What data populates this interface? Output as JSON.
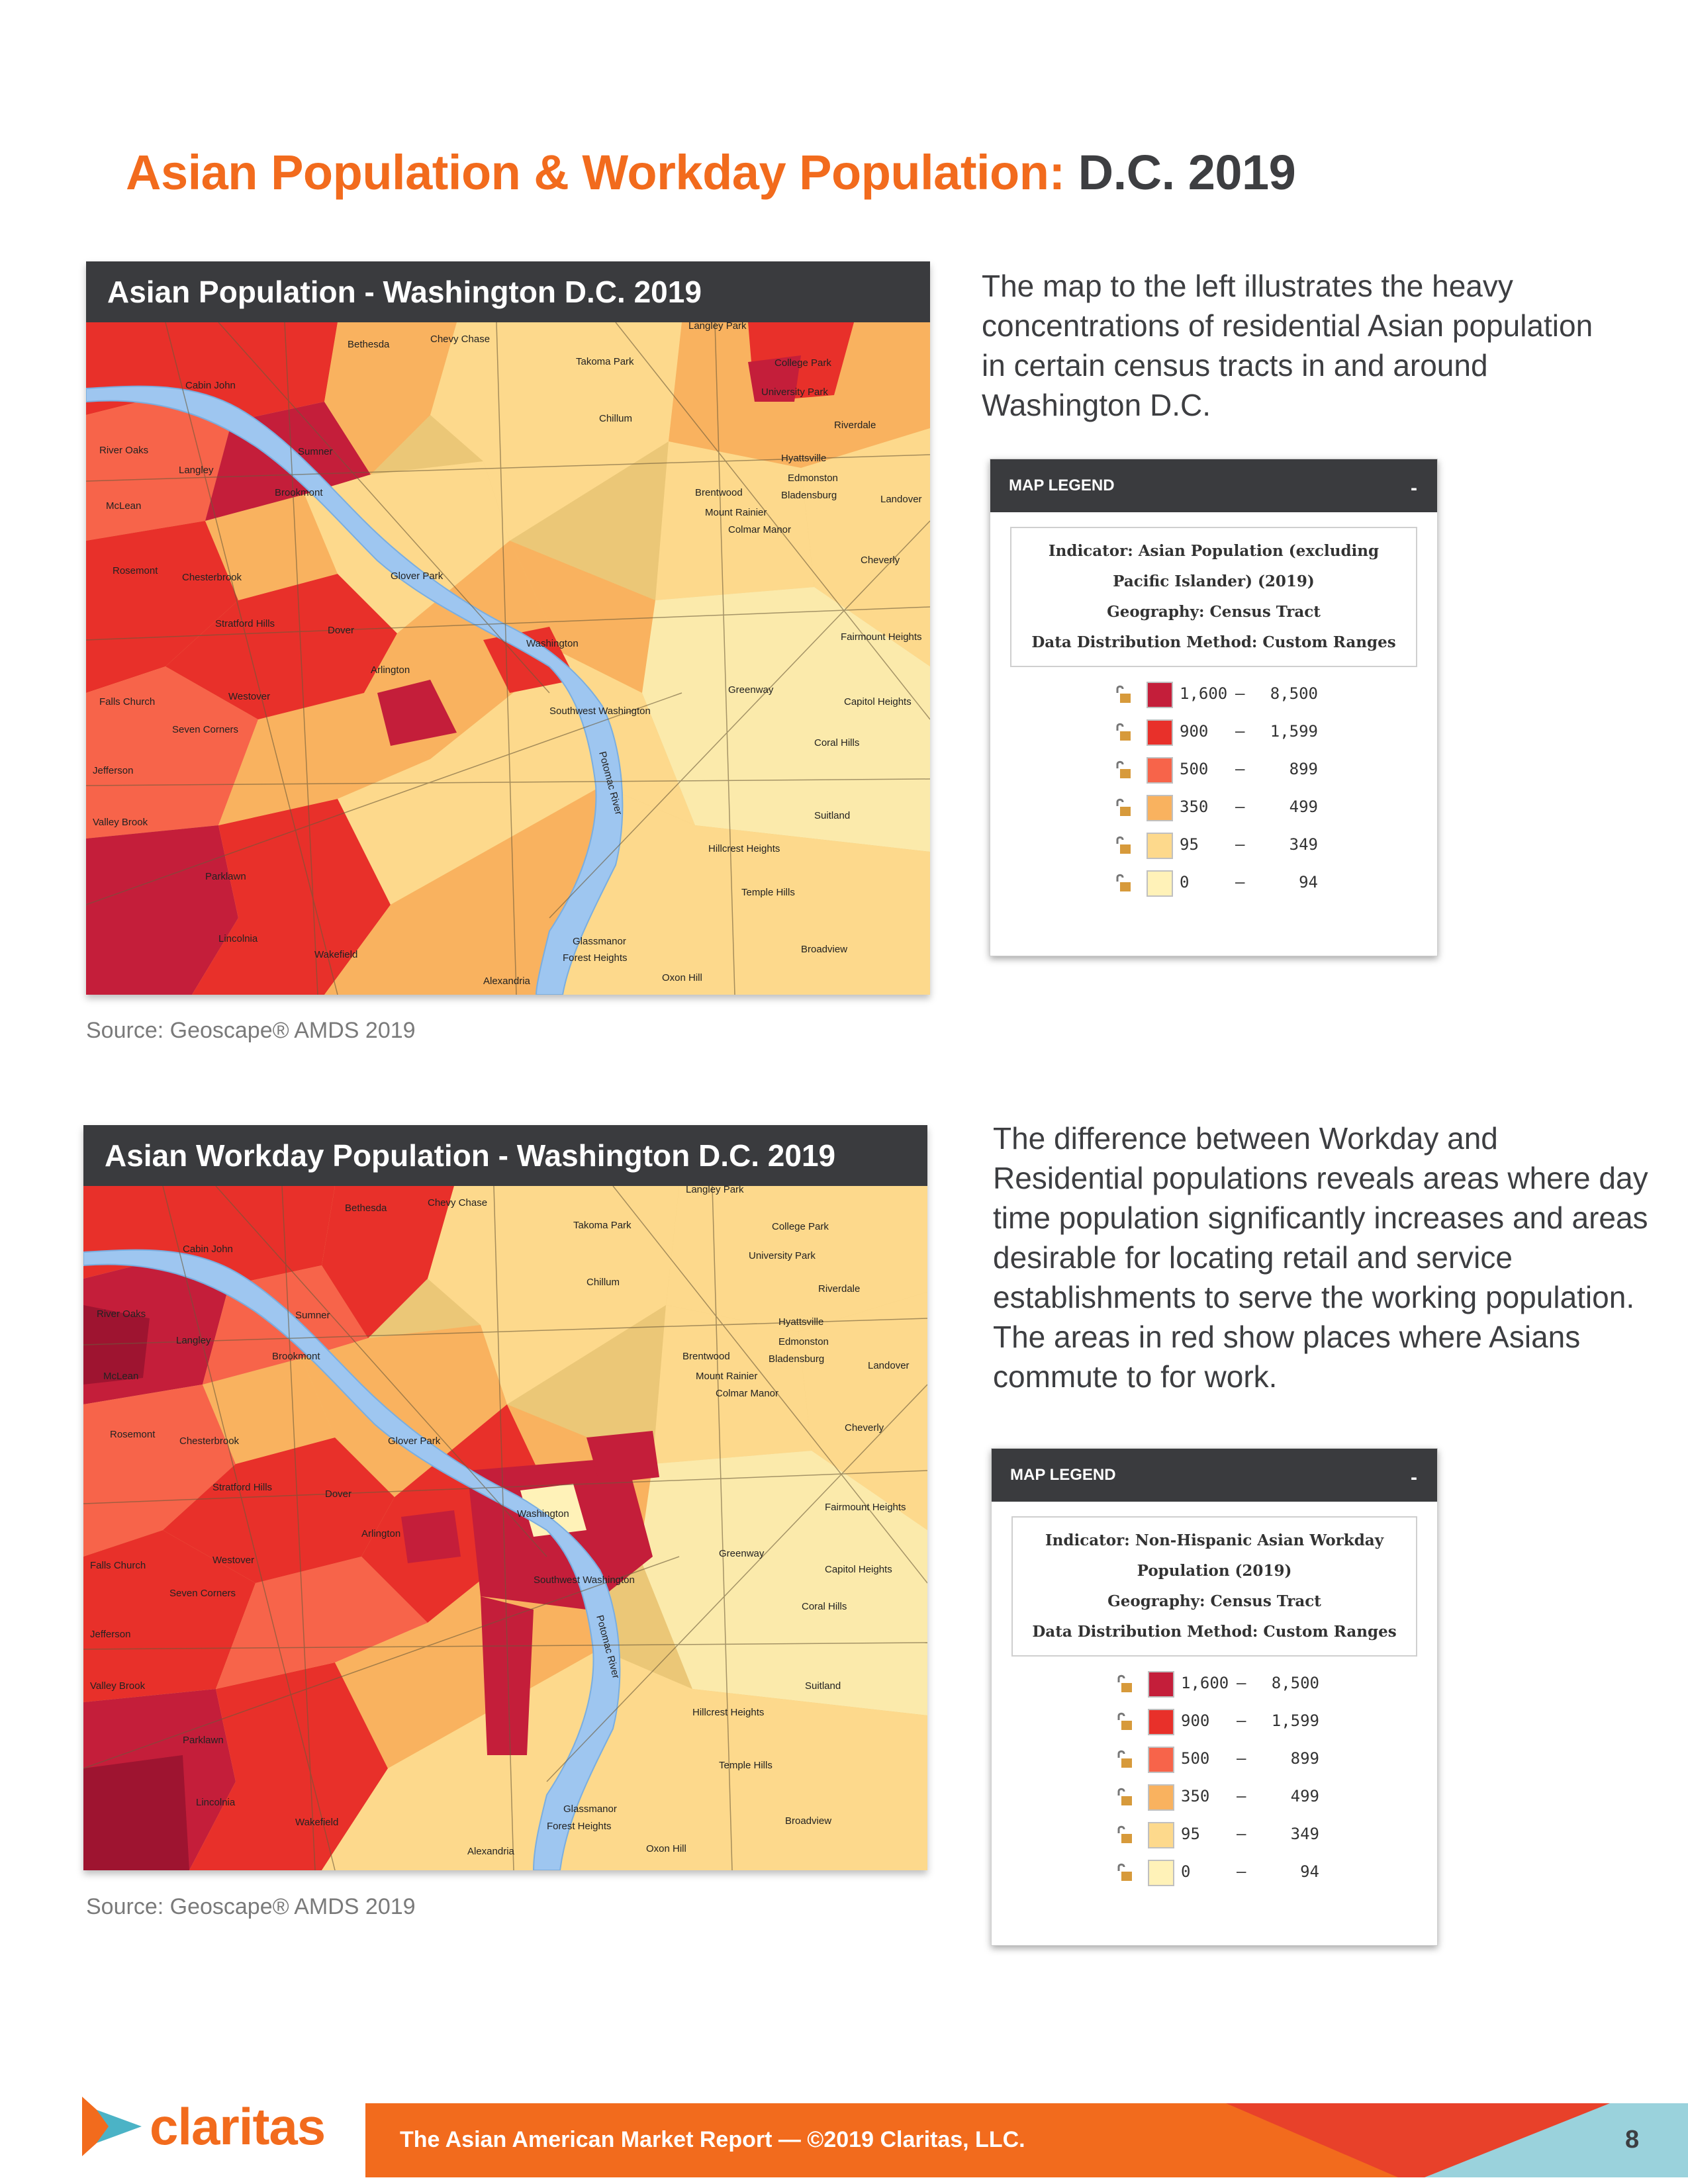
{
  "page": {
    "title_highlight": "Asian Population & Workday Population:",
    "title_rest": "D.C. 2019"
  },
  "map1": {
    "header": "Asian Population - Washington D.C. 2019",
    "source": "Source: Geoscape® AMDS 2019",
    "description": "The map to the left illustrates the heavy concentrations of residential Asian population in certain census tracts in and around Washington D.C.",
    "places": {
      "bethesda": "Bethesda",
      "chevy_chase": "Chevy Chase",
      "takoma_park": "Takoma Park",
      "langley_park": "Langley Park",
      "college_park": "College Park",
      "cabin_john": "Cabin John",
      "river_oaks": "River Oaks",
      "sumner": "Sumner",
      "langley": "Langley",
      "brookmont": "Brookmont",
      "mclean": "McLean",
      "rosemont": "Rosemont",
      "chesterbrook": "Chesterbrook",
      "glover_park": "Glover Park",
      "stratford_hills": "Stratford Hills",
      "dover": "Dover",
      "washington": "Washington",
      "arlington": "Arlington",
      "falls_church": "Falls Church",
      "westover": "Westover",
      "seven_corners": "Seven Corners",
      "jefferson": "Jefferson",
      "valley_brook": "Valley Brook",
      "parklawn": "Parklawn",
      "lincolnia": "Lincolnia",
      "wakefield": "Wakefield",
      "alexandria": "Alexandria",
      "chillum": "Chillum",
      "hyattsville": "Hyattsville",
      "brentwood": "Brentwood",
      "mount_rainier": "Mount Rainier",
      "colmar_manor": "Colmar Manor",
      "greenway": "Greenway",
      "coral_hills": "Coral Hills",
      "suitland": "Suitland",
      "hillcrest_heights": "Hillcrest Heights",
      "temple_hills": "Temple Hills",
      "glassmanor": "Glassmanor",
      "forest_heights": "Forest Heights",
      "oxon_hill": "Oxon Hill",
      "broadview": "Broadview",
      "university_park": "University Park",
      "riverdale": "Riverdale",
      "edmonston": "Edmonston",
      "bladensburg": "Bladensburg",
      "landover": "Landover",
      "cheverly": "Cheverly",
      "fairmount_heights": "Fairmount Heights",
      "capitol_heights": "Capitol Heights",
      "southwest_washington": "Southwest Washington",
      "potomac_river": "Potomac River"
    }
  },
  "legend1": {
    "header": "MAP LEGEND",
    "collapse": "-",
    "info_lines": [
      "Indicator: Asian Population (excluding",
      "Pacific Islander) (2019)",
      "Geography: Census Tract",
      "Data Distribution Method: Custom Ranges"
    ],
    "ranges": [
      {
        "min": "1,600",
        "dash": "—",
        "max": "8,500",
        "color": "#c41e3a"
      },
      {
        "min": "900",
        "dash": "—",
        "max": "1,599",
        "color": "#e8302a"
      },
      {
        "min": "500",
        "dash": "—",
        "max": "899",
        "color": "#f7644a"
      },
      {
        "min": "350",
        "dash": "—",
        "max": "499",
        "color": "#f9b25f"
      },
      {
        "min": "95",
        "dash": "—",
        "max": "349",
        "color": "#fdd98c"
      },
      {
        "min": "0",
        "dash": "—",
        "max": "94",
        "color": "#fff2b8"
      }
    ]
  },
  "map2": {
    "header": "Asian Workday Population - Washington D.C. 2019",
    "source": "Source: Geoscape® AMDS 2019",
    "description": "The difference between Workday and Residential populations reveals areas where day time population significantly increases and areas desirable for locating retail and service establishments to serve the working population. The areas in red show places where Asians commute to for work."
  },
  "legend2": {
    "header": "MAP LEGEND",
    "collapse": "-",
    "info_lines": [
      "Indicator: Non-Hispanic Asian Workday",
      "Population (2019)",
      "Geography: Census Tract",
      "Data Distribution Method: Custom Ranges"
    ],
    "ranges": [
      {
        "min": "1,600",
        "dash": "—",
        "max": "8,500",
        "color": "#c41e3a"
      },
      {
        "min": "900",
        "dash": "—",
        "max": "1,599",
        "color": "#e8302a"
      },
      {
        "min": "500",
        "dash": "—",
        "max": "899",
        "color": "#f7644a"
      },
      {
        "min": "350",
        "dash": "—",
        "max": "499",
        "color": "#f9b25f"
      },
      {
        "min": "95",
        "dash": "—",
        "max": "349",
        "color": "#fdd98c"
      },
      {
        "min": "0",
        "dash": "—",
        "max": "94",
        "color": "#fff2b8"
      }
    ]
  },
  "footer": {
    "brand": "claritas",
    "text": "The Asian American Market Report — ©2019 Claritas, LLC.",
    "page_number": "8",
    "brand_color": "#f26b1d"
  }
}
